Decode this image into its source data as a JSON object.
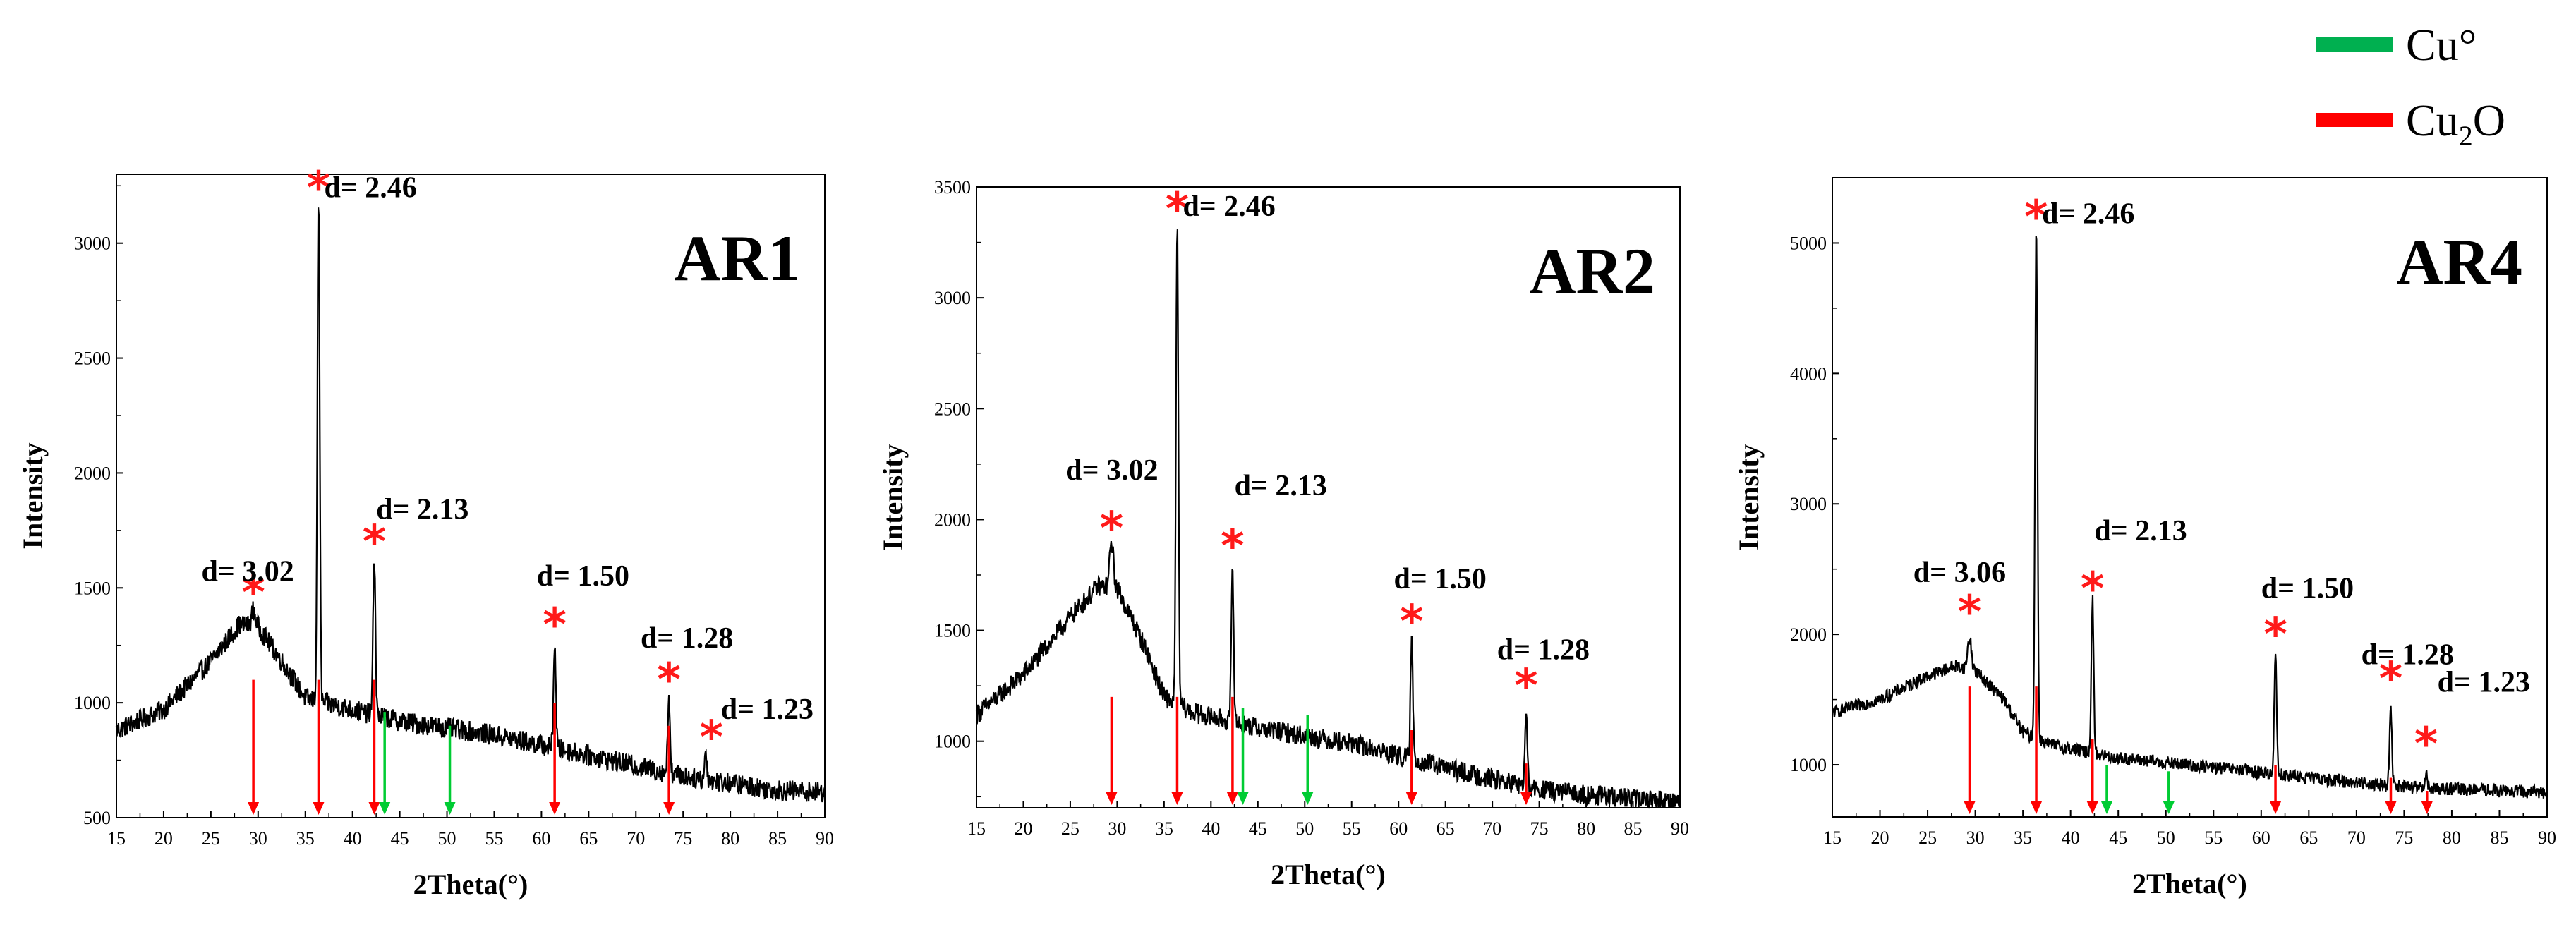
{
  "legend": {
    "items": [
      {
        "label": "Cu°",
        "color": "#00b050"
      },
      {
        "label": "Cu",
        "sub": "2",
        "suffix": "O",
        "color": "#ff0000"
      }
    ]
  },
  "colors": {
    "pattern": "#000000",
    "cu2o": "#ff0000",
    "cu": "#00cc33",
    "star": "#ff1a1a"
  },
  "chart_data": [
    {
      "type": "line",
      "title": "AR1",
      "xlabel": "2Theta(°)",
      "ylabel": "Intensity",
      "xlim": [
        15,
        90
      ],
      "ylim": [
        500,
        3300
      ],
      "xticks": [
        15,
        20,
        25,
        30,
        35,
        40,
        45,
        50,
        55,
        60,
        65,
        70,
        75,
        80,
        85,
        90
      ],
      "yticks": [
        500,
        1000,
        1500,
        2000,
        2500,
        3000
      ],
      "pattern": {
        "baseline": [
          [
            15,
            880
          ],
          [
            20,
            970
          ],
          [
            25,
            1180
          ],
          [
            28,
            1340
          ],
          [
            30,
            1330
          ],
          [
            33,
            1150
          ],
          [
            35,
            1020
          ],
          [
            38,
            990
          ],
          [
            45,
            920
          ],
          [
            55,
            860
          ],
          [
            65,
            770
          ],
          [
            75,
            680
          ],
          [
            85,
            620
          ],
          [
            90,
            610
          ]
        ],
        "noise": 45,
        "peaks": [
          [
            29.5,
            1400,
            0.4
          ],
          [
            36.4,
            3180,
            0.25
          ],
          [
            42.3,
            1640,
            0.25
          ],
          [
            61.4,
            1260,
            0.25
          ],
          [
            73.5,
            1030,
            0.25
          ],
          [
            77.4,
            780,
            0.25
          ]
        ]
      },
      "d_labels": [
        {
          "text": "d= 2.46",
          "x": 37.0,
          "y": 3200
        },
        {
          "text": "d= 3.02",
          "x": 24.0,
          "y": 1530
        },
        {
          "text": "d= 2.13",
          "x": 42.5,
          "y": 1800
        },
        {
          "text": "d= 1.50",
          "x": 59.5,
          "y": 1510
        },
        {
          "text": "d= 1.28",
          "x": 70.5,
          "y": 1240
        },
        {
          "text": "d= 1.23",
          "x": 79.0,
          "y": 930
        }
      ],
      "stars": [
        [
          36.4,
          3240
        ],
        [
          29.5,
          1480
        ],
        [
          42.3,
          1700
        ],
        [
          61.4,
          1340
        ],
        [
          73.5,
          1100
        ],
        [
          78.0,
          850
        ]
      ],
      "cu2o_arrows": [
        [
          29.5,
          1100
        ],
        [
          36.4,
          1100
        ],
        [
          42.3,
          1100
        ],
        [
          61.4,
          1000
        ],
        [
          73.5,
          900
        ]
      ],
      "cu_arrows": [
        [
          43.4,
          960
        ],
        [
          50.3,
          900
        ]
      ]
    },
    {
      "type": "line",
      "title": "AR2",
      "xlabel": "2Theta(°)",
      "ylabel": "Intensity",
      "xlim": [
        15,
        90
      ],
      "ylim": [
        700,
        3500
      ],
      "xticks": [
        15,
        20,
        25,
        30,
        35,
        40,
        45,
        50,
        55,
        60,
        65,
        70,
        75,
        80,
        85,
        90
      ],
      "yticks": [
        1000,
        1500,
        2000,
        2500,
        3000,
        3500
      ],
      "pattern": {
        "baseline": [
          [
            15,
            1120
          ],
          [
            20,
            1300
          ],
          [
            25,
            1560
          ],
          [
            28,
            1700
          ],
          [
            30,
            1690
          ],
          [
            33,
            1420
          ],
          [
            35,
            1200
          ],
          [
            38,
            1130
          ],
          [
            45,
            1060
          ],
          [
            55,
            990
          ],
          [
            65,
            880
          ],
          [
            75,
            780
          ],
          [
            85,
            740
          ],
          [
            90,
            730
          ]
        ],
        "noise": 45,
        "peaks": [
          [
            29.4,
            1900,
            0.4
          ],
          [
            36.4,
            3330,
            0.25
          ],
          [
            42.3,
            1780,
            0.25
          ],
          [
            61.4,
            1460,
            0.25
          ],
          [
            73.6,
            1120,
            0.25
          ]
        ]
      },
      "d_labels": [
        {
          "text": "d= 2.46",
          "x": 37.0,
          "y": 3370
        },
        {
          "text": "d= 3.02",
          "x": 24.5,
          "y": 2180
        },
        {
          "text": "d= 2.13",
          "x": 42.5,
          "y": 2110
        },
        {
          "text": "d= 1.50",
          "x": 59.5,
          "y": 1690
        },
        {
          "text": "d= 1.28",
          "x": 70.5,
          "y": 1370
        }
      ],
      "stars": [
        [
          36.4,
          3400
        ],
        [
          29.4,
          1960
        ],
        [
          42.3,
          1880
        ],
        [
          61.4,
          1540
        ],
        [
          73.6,
          1250
        ]
      ],
      "cu2o_arrows": [
        [
          29.4,
          1200
        ],
        [
          36.4,
          1200
        ],
        [
          42.3,
          1200
        ],
        [
          61.4,
          1050
        ],
        [
          73.6,
          900
        ]
      ],
      "cu_arrows": [
        [
          43.4,
          1150
        ],
        [
          50.3,
          1120
        ]
      ]
    },
    {
      "type": "line",
      "title": "AR4",
      "xlabel": "2Theta(°)",
      "ylabel": "Intensity",
      "xlim": [
        15,
        90
      ],
      "ylim": [
        600,
        5500
      ],
      "xticks": [
        15,
        20,
        25,
        30,
        35,
        40,
        45,
        50,
        55,
        60,
        65,
        70,
        75,
        80,
        85,
        90
      ],
      "yticks": [
        1000,
        2000,
        3000,
        4000,
        5000
      ],
      "pattern": {
        "baseline": [
          [
            15,
            1400
          ],
          [
            20,
            1500
          ],
          [
            25,
            1680
          ],
          [
            28,
            1760
          ],
          [
            30,
            1720
          ],
          [
            33,
            1500
          ],
          [
            35,
            1250
          ],
          [
            38,
            1150
          ],
          [
            45,
            1050
          ],
          [
            55,
            980
          ],
          [
            65,
            900
          ],
          [
            75,
            830
          ],
          [
            85,
            800
          ],
          [
            90,
            790
          ]
        ],
        "noise": 50,
        "peaks": [
          [
            29.4,
            1970,
            0.4
          ],
          [
            36.4,
            5150,
            0.25
          ],
          [
            42.3,
            2270,
            0.25
          ],
          [
            61.5,
            1870,
            0.25
          ],
          [
            73.6,
            1420,
            0.25
          ],
          [
            77.3,
            920,
            0.25
          ]
        ]
      },
      "d_labels": [
        {
          "text": "d= 2.46",
          "x": 37.0,
          "y": 5150
        },
        {
          "text": "d= 3.06",
          "x": 23.5,
          "y": 2400
        },
        {
          "text": "d= 2.13",
          "x": 42.5,
          "y": 2720
        },
        {
          "text": "d= 1.50",
          "x": 60.0,
          "y": 2280
        },
        {
          "text": "d= 1.28",
          "x": 70.5,
          "y": 1770
        },
        {
          "text": "d= 1.23",
          "x": 78.5,
          "y": 1560
        }
      ],
      "stars": [
        [
          36.4,
          5200
        ],
        [
          29.4,
          2170
        ],
        [
          42.3,
          2350
        ],
        [
          61.5,
          2000
        ],
        [
          73.6,
          1660
        ],
        [
          77.3,
          1160
        ]
      ],
      "cu2o_arrows": [
        [
          29.4,
          1600
        ],
        [
          36.4,
          1600
        ],
        [
          42.3,
          1200
        ],
        [
          61.5,
          1000
        ],
        [
          73.6,
          900
        ],
        [
          77.4,
          800
        ]
      ],
      "cu_arrows": [
        [
          43.8,
          1000
        ],
        [
          50.3,
          950
        ]
      ]
    }
  ]
}
